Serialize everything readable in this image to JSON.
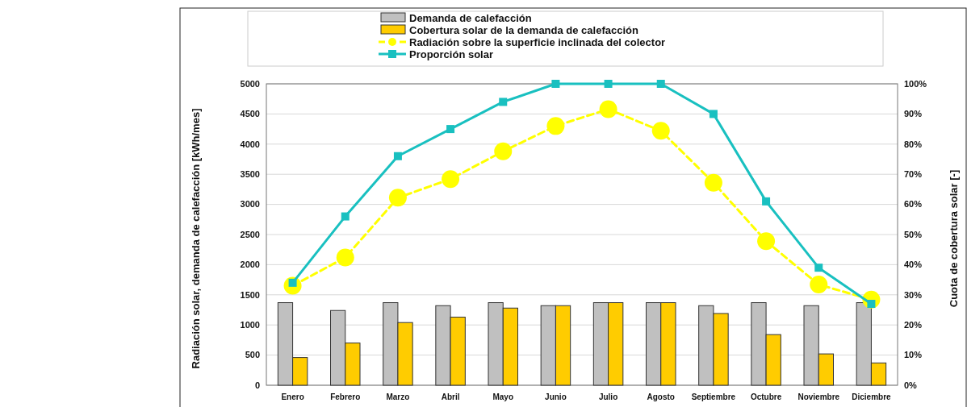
{
  "chart_data": {
    "type": "bar",
    "categories": [
      "Enero",
      "Febrero",
      "Marzo",
      "Abril",
      "Mayo",
      "Junio",
      "Julio",
      "Agosto",
      "Septiembre",
      "Octubre",
      "Noviembre",
      "Diciembre"
    ],
    "series": [
      {
        "name": "Demanda de calefacción",
        "color": "#c0c0c0",
        "values": [
          1370,
          1240,
          1370,
          1320,
          1370,
          1320,
          1370,
          1370,
          1320,
          1370,
          1320,
          1370
        ]
      },
      {
        "name": "Cobertura solar de la demanda de calefacción",
        "color": "#ffcc00",
        "values": [
          460,
          700,
          1040,
          1130,
          1280,
          1320,
          1370,
          1370,
          1190,
          840,
          520,
          370
        ]
      },
      {
        "name": "Radiación sobre la superficie inclinada del colector",
        "type": "line",
        "color": "#ffff00",
        "marker": "circle",
        "line_style": "dashed",
        "values": [
          1650,
          2120,
          3110,
          3420,
          3880,
          4300,
          4580,
          4220,
          3360,
          2390,
          1670,
          1420
        ]
      },
      {
        "name": "Proporción solar",
        "type": "line",
        "color": "#19c0c0",
        "marker": "square",
        "line_style": "solid",
        "axis": "y2",
        "values": [
          34,
          56,
          76,
          85,
          94,
          100,
          100,
          100,
          90,
          61,
          39,
          27
        ]
      }
    ],
    "ylabel": "Radiación solar, demanda de calefacción [kWh/mes]",
    "y2label": "Cuota de cobertura solar [-]",
    "ylim": [
      0,
      5000
    ],
    "yticks": [
      0,
      500,
      1000,
      1500,
      2000,
      2500,
      3000,
      3500,
      4000,
      4500,
      5000
    ],
    "y2lim": [
      0,
      100
    ],
    "y2ticks": [
      {
        "value": 0,
        "label": "0%"
      },
      {
        "value": 10,
        "label": "10%"
      },
      {
        "value": 20,
        "label": "20%"
      },
      {
        "value": 30,
        "label": "30%"
      },
      {
        "value": 40,
        "label": "40%"
      },
      {
        "value": 50,
        "label": "50%"
      },
      {
        "value": 60,
        "label": "60%"
      },
      {
        "value": 70,
        "label": "70%"
      },
      {
        "value": 80,
        "label": "80%"
      },
      {
        "value": 90,
        "label": "90%"
      },
      {
        "value": 100,
        "label": "100%"
      }
    ],
    "grid": "y",
    "legend": "top"
  }
}
